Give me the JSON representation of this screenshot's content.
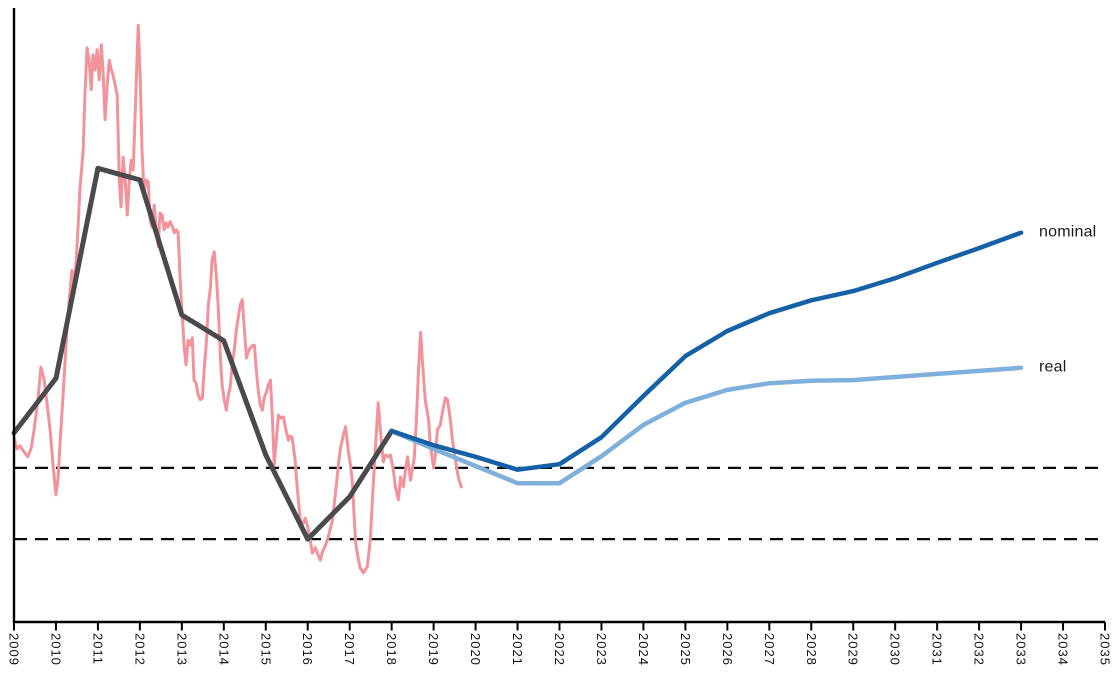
{
  "page": {
    "background": "#ffffff"
  },
  "chart_data": {
    "type": "line",
    "title": "",
    "subtitle": "",
    "grid": false,
    "legend_position": "end-of-line-labels",
    "x_axis": {
      "range": [
        2009,
        2035
      ],
      "tick_interval": 1,
      "tick_rotation_deg": 90,
      "ticks": [
        "2009",
        "2010",
        "2011",
        "2012",
        "2013",
        "2014",
        "2015",
        "2016",
        "2017",
        "2018",
        "2019",
        "2020",
        "2021",
        "2022",
        "2023",
        "2024",
        "2025",
        "2026",
        "2027",
        "2028",
        "2029",
        "2030",
        "2031",
        "2032",
        "2033",
        "2034",
        "2035"
      ]
    },
    "y_axis": {
      "range": [
        0,
        100
      ],
      "ticks": [],
      "note": "no y tick labels visible; unitless index scale"
    },
    "reference_lines": [
      {
        "name": "upper-dashed-level",
        "value": 25.1,
        "style": "dashed",
        "color": "#0b0b0b"
      },
      {
        "name": "lower-dashed-level",
        "value": 13.5,
        "style": "dashed",
        "color": "#0b0b0b"
      }
    ],
    "series": [
      {
        "name": "monthly-history",
        "color": "#F2939B",
        "width": 3,
        "points": [
          [
            2009.0,
            30.1
          ],
          [
            2009.07,
            28.2
          ],
          [
            2009.14,
            28.7
          ],
          [
            2009.24,
            27.7
          ],
          [
            2009.33,
            26.9
          ],
          [
            2009.41,
            28.3
          ],
          [
            2009.48,
            31.3
          ],
          [
            2009.57,
            36.2
          ],
          [
            2009.64,
            41.5
          ],
          [
            2009.72,
            39.4
          ],
          [
            2009.79,
            35.5
          ],
          [
            2009.86,
            31.3
          ],
          [
            2009.93,
            25.6
          ],
          [
            2010.0,
            20.7
          ],
          [
            2010.05,
            23.5
          ],
          [
            2010.1,
            29.6
          ],
          [
            2010.17,
            37.0
          ],
          [
            2010.24,
            45.1
          ],
          [
            2010.31,
            52.0
          ],
          [
            2010.38,
            57.3
          ],
          [
            2010.43,
            54.9
          ],
          [
            2010.48,
            58.6
          ],
          [
            2010.53,
            64.7
          ],
          [
            2010.57,
            70.4
          ],
          [
            2010.65,
            76.9
          ],
          [
            2010.69,
            85.8
          ],
          [
            2010.74,
            93.5
          ],
          [
            2010.79,
            91.5
          ],
          [
            2010.84,
            86.7
          ],
          [
            2010.88,
            92.4
          ],
          [
            2010.93,
            89.9
          ],
          [
            2010.98,
            93.2
          ],
          [
            2011.03,
            88.3
          ],
          [
            2011.08,
            94.0
          ],
          [
            2011.12,
            89.9
          ],
          [
            2011.17,
            81.8
          ],
          [
            2011.22,
            87.5
          ],
          [
            2011.27,
            91.5
          ],
          [
            2011.31,
            90.2
          ],
          [
            2011.36,
            89.1
          ],
          [
            2011.41,
            87.5
          ],
          [
            2011.46,
            85.8
          ],
          [
            2011.51,
            72.0
          ],
          [
            2011.55,
            67.6
          ],
          [
            2011.6,
            75.7
          ],
          [
            2011.65,
            72.0
          ],
          [
            2011.7,
            66.3
          ],
          [
            2011.74,
            71.2
          ],
          [
            2011.79,
            75.2
          ],
          [
            2011.84,
            73.6
          ],
          [
            2011.89,
            83.4
          ],
          [
            2011.96,
            97.2
          ],
          [
            2012.01,
            88.3
          ],
          [
            2012.05,
            76.9
          ],
          [
            2012.1,
            69.6
          ],
          [
            2012.15,
            72.0
          ],
          [
            2012.2,
            71.7
          ],
          [
            2012.24,
            65.5
          ],
          [
            2012.29,
            64.3
          ],
          [
            2012.34,
            67.9
          ],
          [
            2012.39,
            63.9
          ],
          [
            2012.44,
            61.1
          ],
          [
            2012.48,
            66.6
          ],
          [
            2012.53,
            66.3
          ],
          [
            2012.58,
            63.9
          ],
          [
            2012.63,
            65.0
          ],
          [
            2012.67,
            64.3
          ],
          [
            2012.72,
            65.2
          ],
          [
            2012.77,
            64.5
          ],
          [
            2012.82,
            63.4
          ],
          [
            2012.87,
            63.9
          ],
          [
            2012.91,
            63.4
          ],
          [
            2012.96,
            55.7
          ],
          [
            2013.01,
            49.7
          ],
          [
            2013.06,
            44.3
          ],
          [
            2013.1,
            41.9
          ],
          [
            2013.15,
            45.9
          ],
          [
            2013.2,
            45.1
          ],
          [
            2013.25,
            46.3
          ],
          [
            2013.29,
            39.4
          ],
          [
            2013.34,
            38.9
          ],
          [
            2013.39,
            37.0
          ],
          [
            2013.44,
            36.2
          ],
          [
            2013.49,
            36.5
          ],
          [
            2013.53,
            41.1
          ],
          [
            2013.58,
            45.1
          ],
          [
            2013.63,
            51.6
          ],
          [
            2013.68,
            54.4
          ],
          [
            2013.72,
            59.0
          ],
          [
            2013.77,
            60.3
          ],
          [
            2013.82,
            56.5
          ],
          [
            2013.87,
            50.8
          ],
          [
            2013.92,
            42.7
          ],
          [
            2013.96,
            38.6
          ],
          [
            2014.01,
            36.2
          ],
          [
            2014.06,
            34.5
          ],
          [
            2014.11,
            37.0
          ],
          [
            2014.15,
            38.1
          ],
          [
            2014.2,
            41.9
          ],
          [
            2014.25,
            44.3
          ],
          [
            2014.3,
            47.6
          ],
          [
            2014.34,
            49.5
          ],
          [
            2014.39,
            51.6
          ],
          [
            2014.44,
            52.5
          ],
          [
            2014.49,
            47.6
          ],
          [
            2014.54,
            43.0
          ],
          [
            2014.58,
            44.0
          ],
          [
            2014.63,
            44.6
          ],
          [
            2014.68,
            45.0
          ],
          [
            2014.73,
            45.1
          ],
          [
            2014.77,
            41.4
          ],
          [
            2014.82,
            37.8
          ],
          [
            2014.87,
            35.3
          ],
          [
            2014.92,
            34.5
          ],
          [
            2014.96,
            36.5
          ],
          [
            2015.01,
            37.3
          ],
          [
            2015.06,
            38.6
          ],
          [
            2015.11,
            39.4
          ],
          [
            2015.16,
            32.9
          ],
          [
            2015.2,
            25.6
          ],
          [
            2015.25,
            29.6
          ],
          [
            2015.3,
            33.7
          ],
          [
            2015.35,
            33.2
          ],
          [
            2015.42,
            33.4
          ],
          [
            2015.47,
            31.6
          ],
          [
            2015.54,
            29.6
          ],
          [
            2015.59,
            30.3
          ],
          [
            2015.63,
            30.0
          ],
          [
            2015.7,
            26.4
          ],
          [
            2015.75,
            22.0
          ],
          [
            2015.82,
            16.6
          ],
          [
            2015.9,
            16.1
          ],
          [
            2015.94,
            16.9
          ],
          [
            2015.99,
            15.8
          ],
          [
            2016.06,
            13.4
          ],
          [
            2016.11,
            11.2
          ],
          [
            2016.18,
            12.1
          ],
          [
            2016.23,
            11.2
          ],
          [
            2016.3,
            10.1
          ],
          [
            2016.35,
            11.4
          ],
          [
            2016.42,
            12.5
          ],
          [
            2016.47,
            13.4
          ],
          [
            2016.54,
            15.3
          ],
          [
            2016.59,
            16.6
          ],
          [
            2016.63,
            19.1
          ],
          [
            2016.68,
            22.3
          ],
          [
            2016.73,
            25.6
          ],
          [
            2016.78,
            28.3
          ],
          [
            2016.85,
            30.5
          ],
          [
            2016.9,
            31.8
          ],
          [
            2016.97,
            27.7
          ],
          [
            2017.02,
            25.6
          ],
          [
            2017.06,
            23.1
          ],
          [
            2017.14,
            12.9
          ],
          [
            2017.21,
            10.1
          ],
          [
            2017.25,
            8.8
          ],
          [
            2017.33,
            8.0
          ],
          [
            2017.37,
            8.5
          ],
          [
            2017.42,
            9.0
          ],
          [
            2017.49,
            13.4
          ],
          [
            2017.54,
            19.9
          ],
          [
            2017.61,
            28.0
          ],
          [
            2017.68,
            35.7
          ],
          [
            2017.73,
            31.3
          ],
          [
            2017.8,
            26.1
          ],
          [
            2017.85,
            27.2
          ],
          [
            2017.92,
            26.9
          ],
          [
            2017.97,
            27.2
          ],
          [
            2018.04,
            24.8
          ],
          [
            2018.09,
            22.0
          ],
          [
            2018.16,
            19.9
          ],
          [
            2018.21,
            23.6
          ],
          [
            2018.28,
            22.0
          ],
          [
            2018.33,
            24.8
          ],
          [
            2018.38,
            26.9
          ],
          [
            2018.45,
            23.1
          ],
          [
            2018.49,
            24.8
          ],
          [
            2018.54,
            26.7
          ],
          [
            2018.59,
            32.9
          ],
          [
            2018.64,
            41.1
          ],
          [
            2018.69,
            47.2
          ],
          [
            2018.73,
            42.7
          ],
          [
            2018.8,
            36.2
          ],
          [
            2018.88,
            32.9
          ],
          [
            2018.92,
            28.8
          ],
          [
            2019.0,
            25.1
          ],
          [
            2019.04,
            27.2
          ],
          [
            2019.09,
            31.3
          ],
          [
            2019.16,
            32.1
          ],
          [
            2019.23,
            34.9
          ],
          [
            2019.28,
            36.5
          ],
          [
            2019.33,
            36.2
          ],
          [
            2019.4,
            32.9
          ],
          [
            2019.45,
            29.6
          ],
          [
            2019.52,
            26.4
          ],
          [
            2019.59,
            23.5
          ],
          [
            2019.66,
            22.0
          ]
        ]
      },
      {
        "name": "annual-average-history",
        "color": "#4A494B",
        "width": 5,
        "points": [
          [
            2009,
            30.8
          ],
          [
            2010,
            39.7
          ],
          [
            2011,
            73.9
          ],
          [
            2012,
            72.0
          ],
          [
            2013,
            50.0
          ],
          [
            2014,
            45.8
          ],
          [
            2015,
            27.2
          ],
          [
            2016,
            13.5
          ],
          [
            2017,
            20.4
          ],
          [
            2018,
            31.1
          ]
        ]
      },
      {
        "name": "real",
        "color": "#7FB0DC",
        "width": 4.5,
        "points": [
          [
            2018,
            31.1
          ],
          [
            2019,
            28.2
          ],
          [
            2020,
            25.4
          ],
          [
            2021,
            22.6
          ],
          [
            2022,
            22.6
          ],
          [
            2023,
            27.0
          ],
          [
            2024,
            32.1
          ],
          [
            2025,
            35.7
          ],
          [
            2026,
            37.8
          ],
          [
            2027,
            38.9
          ],
          [
            2028,
            39.3
          ],
          [
            2029,
            39.4
          ],
          [
            2030,
            39.9
          ],
          [
            2031,
            40.4
          ],
          [
            2032,
            40.9
          ],
          [
            2033,
            41.4
          ]
        ]
      },
      {
        "name": "nominal",
        "color": "#1560A6",
        "width": 4.5,
        "points": [
          [
            2018,
            31.1
          ],
          [
            2019,
            28.8
          ],
          [
            2020,
            26.9
          ],
          [
            2021,
            24.8
          ],
          [
            2022,
            25.7
          ],
          [
            2023,
            30.1
          ],
          [
            2024,
            36.8
          ],
          [
            2025,
            43.3
          ],
          [
            2026,
            47.4
          ],
          [
            2027,
            50.3
          ],
          [
            2028,
            52.4
          ],
          [
            2029,
            53.9
          ],
          [
            2030,
            56.0
          ],
          [
            2031,
            58.5
          ],
          [
            2032,
            60.9
          ],
          [
            2033,
            63.4
          ]
        ]
      }
    ],
    "annotations": [
      {
        "label": "nominal",
        "year": 2033.42,
        "value": 63.4,
        "color": "#1a1a1a"
      },
      {
        "label": "real",
        "year": 2033.42,
        "value": 41.4,
        "color": "#1a1a1a"
      }
    ]
  },
  "colors": {
    "axis": "#000000",
    "tick_text": "#111111"
  }
}
